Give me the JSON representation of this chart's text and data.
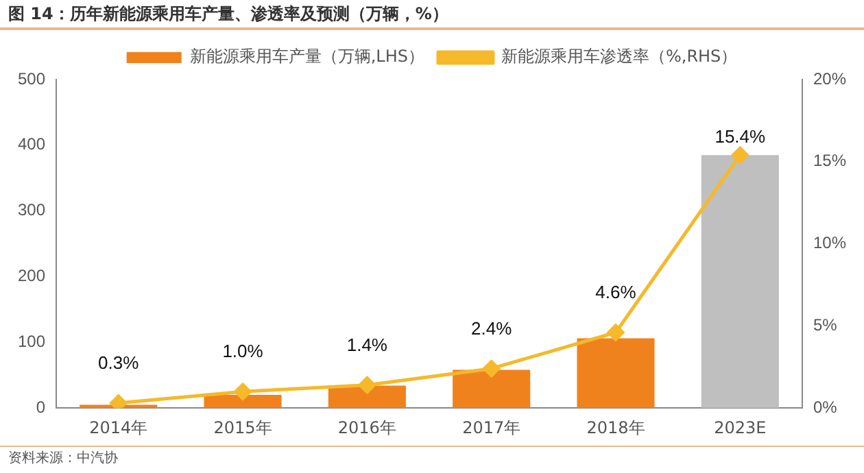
{
  "chart_data": {
    "type": "bar",
    "title": "图 14：历年新能源乘用车产量、渗透率及预测（万辆，%）",
    "categories": [
      "2014年",
      "2015年",
      "2016年",
      "2017年",
      "2018年",
      "2023E"
    ],
    "series": [
      {
        "name": "新能源乘用车产量（万辆,LHS）",
        "color": "#f0821e",
        "colors": [
          "#f0821e",
          "#f0821e",
          "#f0821e",
          "#f0821e",
          "#f0821e",
          "#bfbfbf"
        ],
        "values": [
          5,
          20,
          34,
          58,
          106,
          385
        ]
      },
      {
        "name": "新能源乘用车渗透率（%,RHS）",
        "type": "line",
        "axis": "y2",
        "color": "#f5b92a",
        "values": [
          0.3,
          1.0,
          1.4,
          2.4,
          4.6,
          15.4
        ],
        "value_labels": [
          "0.3%",
          "1.0%",
          "1.4%",
          "2.4%",
          "4.6%",
          "15.4%"
        ]
      }
    ],
    "ylim": [
      0,
      500
    ],
    "yticks": [
      0,
      100,
      200,
      300,
      400,
      500
    ],
    "y2lim": [
      0,
      20
    ],
    "y2ticks": [
      {
        "value": 0,
        "label": "0%"
      },
      {
        "value": 5,
        "label": "5%"
      },
      {
        "value": 10,
        "label": "10%"
      },
      {
        "value": 15,
        "label": "15%"
      },
      {
        "value": 20,
        "label": "20%"
      }
    ],
    "grid": false,
    "legend": "top",
    "marker": "diamond",
    "annotations": [
      "资料来源：中汽协"
    ]
  }
}
